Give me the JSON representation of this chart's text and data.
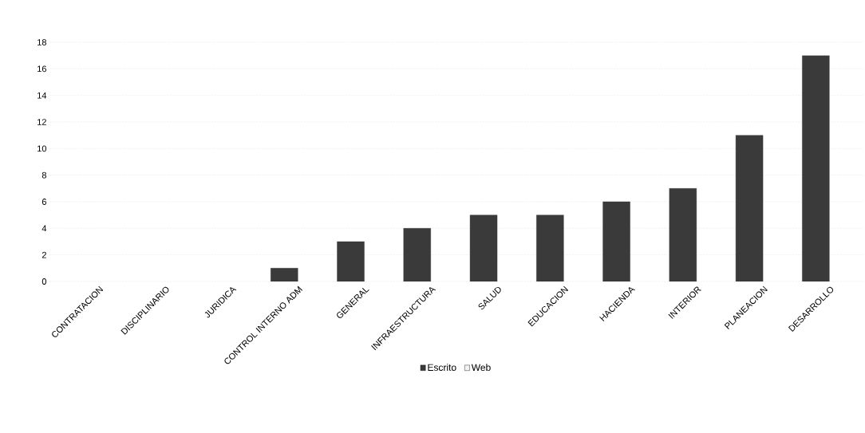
{
  "chart_data": {
    "type": "bar",
    "stacked": true,
    "categories": [
      "CONTRATACION",
      "DISCIPLINARIO",
      "JURIDICA",
      "CONTROL INTERNO ADM",
      "GENERAL",
      "INFRAESTRUCTURA",
      "SALUD",
      "EDUCACION",
      "HACIENDA",
      "INTERIOR",
      "PLANEACION",
      "DESARROLLO"
    ],
    "series": [
      {
        "name": "Escrito",
        "color": "#3a3a3a",
        "values": [
          0,
          0,
          0,
          1,
          3,
          4,
          5,
          5,
          6,
          7,
          11,
          17
        ]
      },
      {
        "name": "Web",
        "color": "#f2f2f2",
        "values": [
          0,
          0,
          0,
          0,
          0,
          0,
          0,
          0,
          0,
          0,
          0,
          0
        ]
      }
    ],
    "ylim": [
      0,
      18
    ],
    "yticks": [
      0,
      2,
      4,
      6,
      8,
      10,
      12,
      14,
      16,
      18
    ],
    "grid": "y",
    "legend": "bottom"
  }
}
